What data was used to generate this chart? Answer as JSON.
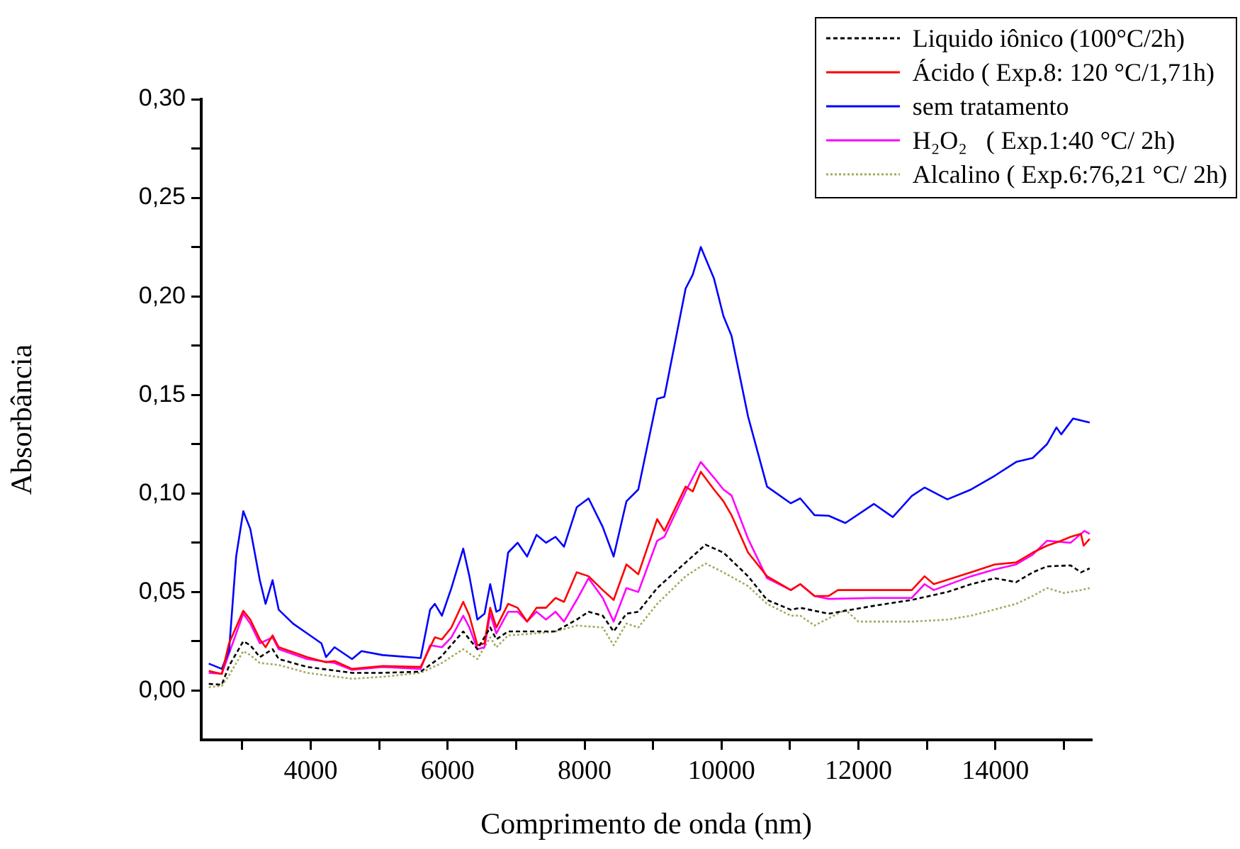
{
  "chart_data": {
    "type": "line",
    "xlabel": "Comprimento de onda (nm)",
    "ylabel": "Absorbância",
    "xlim": [
      2400,
      15400
    ],
    "ylim": [
      -0.025,
      0.3
    ],
    "xticks": [
      {
        "value": 3000,
        "label": null
      },
      4000,
      {
        "value": 5000,
        "label": null
      },
      6000,
      {
        "value": 7000,
        "label": null
      },
      8000,
      {
        "value": 9000,
        "label": null
      },
      10000,
      {
        "value": 11000,
        "label": null
      },
      12000,
      {
        "value": 13000,
        "label": null
      },
      14000,
      {
        "value": 15000,
        "label": null
      }
    ],
    "yticks": [
      {
        "value": 0,
        "label": "0,00"
      },
      {
        "value": 0.025,
        "label": null
      },
      {
        "value": 0.05,
        "label": "0,05"
      },
      {
        "value": 0.075,
        "label": null
      },
      {
        "value": 0.1,
        "label": "0,10"
      },
      {
        "value": 0.125,
        "label": null
      },
      {
        "value": 0.15,
        "label": "0,15"
      },
      {
        "value": 0.175,
        "label": null
      },
      {
        "value": 0.2,
        "label": "0,20"
      },
      {
        "value": 0.225,
        "label": null
      },
      {
        "value": 0.25,
        "label": "0,25"
      },
      {
        "value": 0.275,
        "label": null
      },
      {
        "value": 0.3,
        "label": "0,30"
      }
    ],
    "grid": false,
    "legend": "top right",
    "marker": "none",
    "series": [
      {
        "name": "Liquido iônico (100°C/2h)",
        "color": "#000000",
        "line_style": "dashed",
        "x": [
          2510,
          2700,
          2806,
          3014,
          3117,
          3256,
          3442,
          3532,
          3947,
          4603,
          5052,
          5605,
          5900,
          6227,
          6434,
          6621,
          6711,
          6883,
          7298,
          7575,
          7885,
          8058,
          8265,
          8424,
          8611,
          8784,
          9060,
          9476,
          9767,
          10028,
          10388,
          10665,
          11012,
          11150,
          11566,
          12225,
          12779,
          13299,
          13645,
          13992,
          14304,
          14546,
          14754,
          15100,
          15250,
          15378
        ],
        "values": [
          0.0034,
          0.003,
          0.0125,
          0.025,
          0.023,
          0.017,
          0.021,
          0.016,
          0.012,
          0.009,
          0.009,
          0.0096,
          0.017,
          0.03,
          0.021,
          0.032,
          0.026,
          0.03,
          0.03,
          0.03,
          0.036,
          0.04,
          0.038,
          0.03,
          0.039,
          0.04,
          0.052,
          0.065,
          0.074,
          0.07,
          0.058,
          0.046,
          0.041,
          0.042,
          0.039,
          0.043,
          0.046,
          0.05,
          0.054,
          0.057,
          0.055,
          0.06,
          0.063,
          0.0635,
          0.06,
          0.062
        ]
      },
      {
        "name": "Ácido ( Exp.8: 120 °C/1,71h)",
        "color": "#ff0000",
        "line_style": "solid",
        "x": [
          2510,
          2700,
          2806,
          3014,
          3117,
          3256,
          3340,
          3442,
          3532,
          3947,
          4223,
          4347,
          4603,
          5052,
          5605,
          5812,
          5916,
          6054,
          6227,
          6317,
          6434,
          6538,
          6621,
          6711,
          6883,
          7021,
          7160,
          7298,
          7436,
          7575,
          7699,
          7885,
          8058,
          8265,
          8424,
          8611,
          8784,
          9060,
          9165,
          9476,
          9580,
          9697,
          9890,
          10028,
          10146,
          10388,
          10665,
          11012,
          11150,
          11358,
          11566,
          11700,
          12225,
          12779,
          12966,
          13100,
          13645,
          13992,
          14304,
          14546,
          14754,
          14962,
          15100,
          15250,
          15290,
          15378
        ],
        "values": [
          0.01,
          0.0084,
          0.024,
          0.0405,
          0.036,
          0.026,
          0.022,
          0.028,
          0.022,
          0.017,
          0.0144,
          0.015,
          0.011,
          0.0125,
          0.012,
          0.027,
          0.026,
          0.032,
          0.045,
          0.038,
          0.023,
          0.024,
          0.042,
          0.032,
          0.044,
          0.042,
          0.035,
          0.042,
          0.042,
          0.047,
          0.045,
          0.06,
          0.058,
          0.051,
          0.046,
          0.064,
          0.059,
          0.087,
          0.081,
          0.1035,
          0.101,
          0.111,
          0.102,
          0.096,
          0.089,
          0.07,
          0.058,
          0.051,
          0.054,
          0.048,
          0.048,
          0.051,
          0.051,
          0.051,
          0.058,
          0.054,
          0.06,
          0.064,
          0.065,
          0.07,
          0.0735,
          0.076,
          0.078,
          0.0795,
          0.0735,
          0.077
        ]
      },
      {
        "name": "sem tratamento",
        "color": "#0000ff",
        "line_style": "solid",
        "x": [
          2510,
          2700,
          2806,
          2910,
          3014,
          3117,
          3256,
          3340,
          3442,
          3532,
          3740,
          3947,
          4155,
          4223,
          4347,
          4603,
          4741,
          5052,
          5605,
          5743,
          5812,
          5916,
          6054,
          6227,
          6317,
          6434,
          6538,
          6621,
          6711,
          6766,
          6883,
          7021,
          7160,
          7298,
          7436,
          7575,
          7699,
          7885,
          8058,
          8265,
          8424,
          8611,
          8784,
          9060,
          9165,
          9476,
          9580,
          9697,
          9890,
          10028,
          10146,
          10388,
          10665,
          11012,
          11150,
          11358,
          11566,
          11809,
          12225,
          12502,
          12779,
          12966,
          13299,
          13645,
          13992,
          14304,
          14546,
          14754,
          14893,
          14962,
          15135,
          15378
        ],
        "values": [
          0.0137,
          0.011,
          0.02,
          0.068,
          0.091,
          0.082,
          0.056,
          0.044,
          0.056,
          0.041,
          0.034,
          0.029,
          0.024,
          0.017,
          0.022,
          0.016,
          0.02,
          0.018,
          0.0165,
          0.041,
          0.044,
          0.038,
          0.052,
          0.072,
          0.058,
          0.036,
          0.039,
          0.054,
          0.04,
          0.041,
          0.07,
          0.075,
          0.068,
          0.079,
          0.075,
          0.078,
          0.073,
          0.093,
          0.0975,
          0.083,
          0.068,
          0.096,
          0.102,
          0.148,
          0.149,
          0.204,
          0.211,
          0.225,
          0.209,
          0.19,
          0.18,
          0.139,
          0.1035,
          0.095,
          0.0975,
          0.089,
          0.0887,
          0.085,
          0.0947,
          0.088,
          0.0987,
          0.103,
          0.097,
          0.102,
          0.109,
          0.116,
          0.118,
          0.125,
          0.1335,
          0.13,
          0.138,
          0.136
        ]
      },
      {
        "name": "H₂O₂   ( Exp.1:40 °C/ 2h)",
        "color": "#ff00ff",
        "line_style": "solid",
        "x": [
          2510,
          2700,
          3014,
          3117,
          3256,
          3442,
          3532,
          3947,
          4347,
          4603,
          5052,
          5605,
          5743,
          5916,
          6054,
          6227,
          6317,
          6434,
          6538,
          6621,
          6711,
          6883,
          7021,
          7160,
          7298,
          7436,
          7575,
          7699,
          7885,
          8058,
          8265,
          8424,
          8611,
          8784,
          9060,
          9165,
          9476,
          9697,
          9890,
          10028,
          10146,
          10388,
          10665,
          11012,
          11150,
          11358,
          11566,
          12225,
          12779,
          12966,
          13100,
          13645,
          13992,
          14304,
          14546,
          14754,
          15100,
          15300,
          15378
        ],
        "values": [
          0.009,
          0.0085,
          0.039,
          0.034,
          0.024,
          0.027,
          0.021,
          0.016,
          0.014,
          0.0105,
          0.012,
          0.011,
          0.023,
          0.022,
          0.027,
          0.038,
          0.032,
          0.021,
          0.022,
          0.039,
          0.029,
          0.04,
          0.04,
          0.035,
          0.04,
          0.036,
          0.04,
          0.035,
          0.046,
          0.057,
          0.047,
          0.035,
          0.052,
          0.05,
          0.076,
          0.078,
          0.101,
          0.116,
          0.108,
          0.102,
          0.099,
          0.077,
          0.057,
          0.051,
          0.054,
          0.048,
          0.0465,
          0.047,
          0.047,
          0.054,
          0.051,
          0.058,
          0.0615,
          0.064,
          0.069,
          0.076,
          0.075,
          0.081,
          0.0795
        ]
      },
      {
        "name": "Alcalino ( Exp.6:76,21 °C/ 2h)",
        "color": "#a8a860",
        "line_style": "dotted",
        "x": [
          2510,
          2700,
          2806,
          3014,
          3117,
          3256,
          3532,
          3947,
          4603,
          5052,
          5605,
          5900,
          6227,
          6434,
          6621,
          6711,
          6883,
          7298,
          7575,
          7885,
          8265,
          8424,
          8611,
          8784,
          9060,
          9476,
          9767,
          10028,
          10388,
          10665,
          11012,
          11150,
          11358,
          11809,
          12000,
          12779,
          13299,
          13645,
          14304,
          14546,
          14754,
          15000,
          15250,
          15378
        ],
        "values": [
          0.0017,
          0.0024,
          0.0077,
          0.02,
          0.018,
          0.014,
          0.013,
          0.009,
          0.006,
          0.007,
          0.009,
          0.0137,
          0.021,
          0.016,
          0.027,
          0.022,
          0.028,
          0.029,
          0.03,
          0.033,
          0.032,
          0.023,
          0.034,
          0.032,
          0.044,
          0.058,
          0.0645,
          0.06,
          0.053,
          0.044,
          0.038,
          0.038,
          0.033,
          0.041,
          0.035,
          0.035,
          0.036,
          0.038,
          0.044,
          0.048,
          0.052,
          0.0495,
          0.051,
          0.052
        ]
      }
    ]
  }
}
